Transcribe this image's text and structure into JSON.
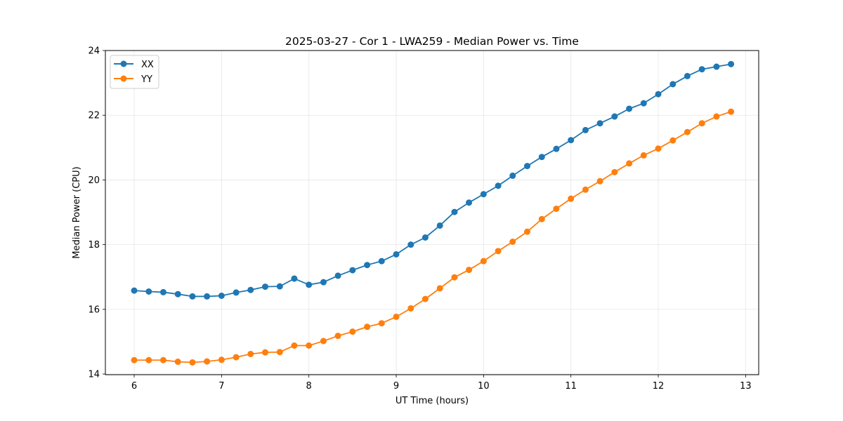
{
  "chart_data": {
    "type": "line",
    "title": "2025-03-27 - Cor 1 - LWA259 - Median Power vs. Time",
    "xlabel": "UT Time (hours)",
    "ylabel": "Median Power (CPU)",
    "xlim": [
      5.67,
      13.15
    ],
    "ylim": [
      13.98,
      24.0
    ],
    "xticks": [
      6,
      7,
      8,
      9,
      10,
      11,
      12,
      13
    ],
    "yticks": [
      14,
      16,
      18,
      20,
      22,
      24
    ],
    "grid": true,
    "legend_position": "upper-left",
    "x": [
      6.0,
      6.167,
      6.333,
      6.5,
      6.667,
      6.833,
      7.0,
      7.167,
      7.333,
      7.5,
      7.667,
      7.833,
      8.0,
      8.167,
      8.333,
      8.5,
      8.667,
      8.833,
      9.0,
      9.167,
      9.333,
      9.5,
      9.667,
      9.833,
      10.0,
      10.167,
      10.333,
      10.5,
      10.667,
      10.833,
      11.0,
      11.167,
      11.333,
      11.5,
      11.667,
      11.833,
      12.0,
      12.167,
      12.333,
      12.5,
      12.667,
      12.833
    ],
    "series": [
      {
        "name": "XX",
        "color": "#1f77b4",
        "values": [
          16.58,
          16.55,
          16.53,
          16.47,
          16.4,
          16.4,
          16.42,
          16.52,
          16.6,
          16.7,
          16.71,
          16.95,
          16.76,
          16.84,
          17.04,
          17.21,
          17.37,
          17.49,
          17.7,
          18.0,
          18.22,
          18.59,
          19.01,
          19.3,
          19.56,
          19.82,
          20.13,
          20.43,
          20.71,
          20.96,
          21.23,
          21.54,
          21.75,
          21.96,
          22.2,
          22.37,
          22.65,
          22.96,
          23.21,
          23.42,
          23.5,
          23.58
        ]
      },
      {
        "name": "YY",
        "color": "#ff7f0e",
        "values": [
          14.43,
          14.43,
          14.43,
          14.38,
          14.36,
          14.39,
          14.44,
          14.52,
          14.62,
          14.67,
          14.68,
          14.88,
          14.88,
          15.02,
          15.18,
          15.31,
          15.46,
          15.57,
          15.77,
          16.03,
          16.32,
          16.65,
          16.99,
          17.22,
          17.49,
          17.8,
          18.09,
          18.4,
          18.79,
          19.11,
          19.42,
          19.7,
          19.96,
          20.24,
          20.51,
          20.76,
          20.97,
          21.22,
          21.48,
          21.75,
          21.96,
          22.11
        ]
      }
    ]
  }
}
